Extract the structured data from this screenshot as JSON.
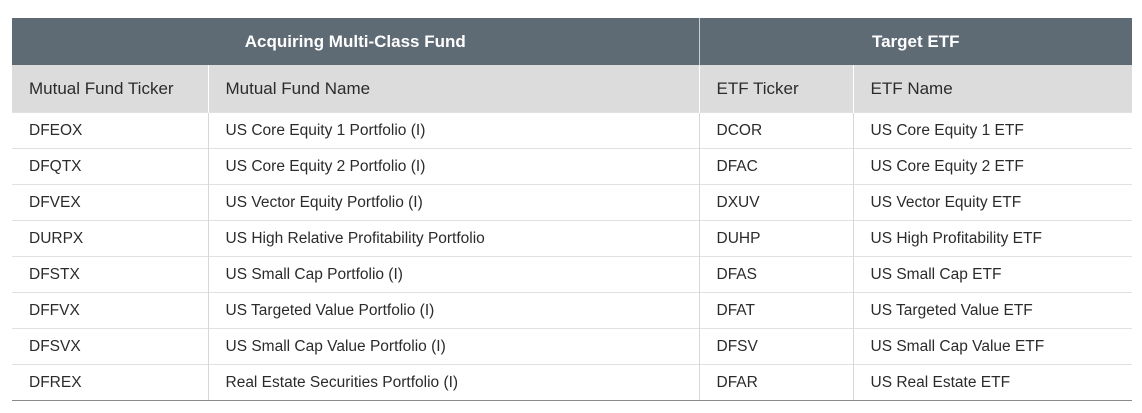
{
  "table": {
    "groups": [
      "Acquiring Multi-Class Fund",
      "Target ETF"
    ],
    "columns": [
      "Mutual Fund Ticker",
      "Mutual Fund Name",
      "ETF Ticker",
      "ETF Name"
    ],
    "rows": [
      [
        "DFEOX",
        "US Core Equity 1 Portfolio (I)",
        "DCOR",
        "US Core Equity 1 ETF"
      ],
      [
        "DFQTX",
        "US Core Equity 2 Portfolio (I)",
        "DFAC",
        "US Core Equity 2 ETF"
      ],
      [
        "DFVEX",
        "US Vector Equity Portfolio (I)",
        "DXUV",
        "US Vector Equity ETF"
      ],
      [
        "DURPX",
        "US High Relative Profitability Portfolio",
        "DUHP",
        "US High Profitability ETF"
      ],
      [
        "DFSTX",
        "US Small Cap Portfolio (I)",
        "DFAS",
        "US Small Cap ETF"
      ],
      [
        "DFFVX",
        "US Targeted Value Portfolio (I)",
        "DFAT",
        "US Targeted Value ETF"
      ],
      [
        "DFSVX",
        "US Small Cap Value Portfolio (I)",
        "DFSV",
        "US Small Cap Value ETF"
      ],
      [
        "DFREX",
        "Real Estate Securities Portfolio (I)",
        "DFAR",
        "US Real Estate ETF"
      ]
    ]
  }
}
